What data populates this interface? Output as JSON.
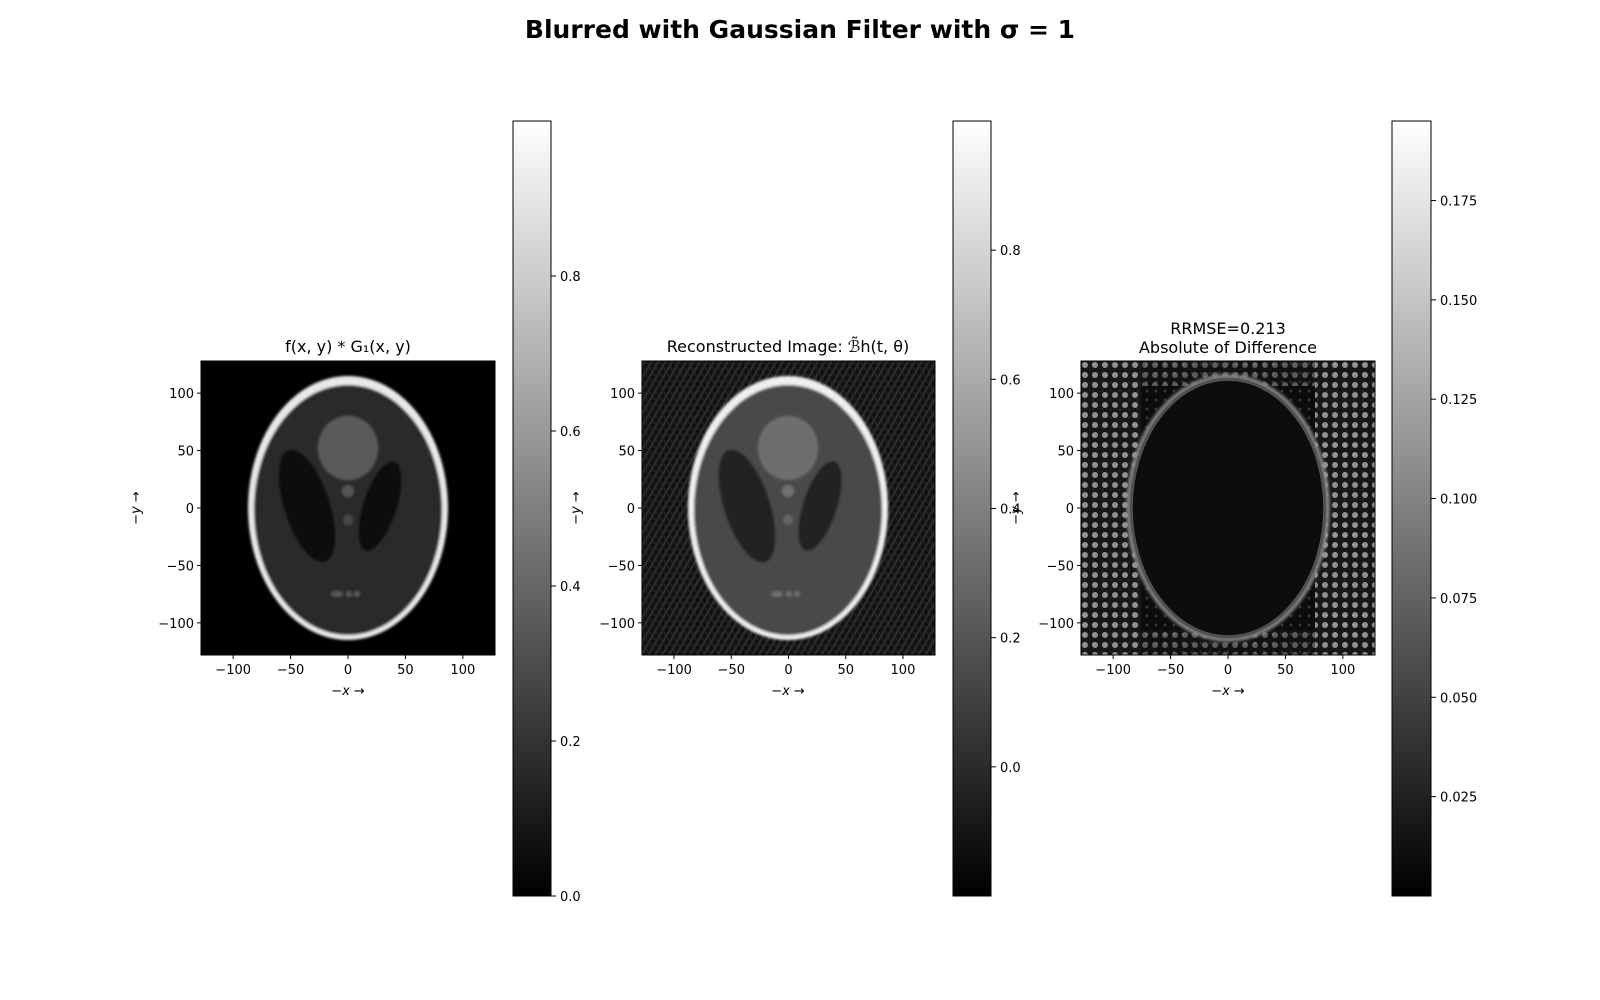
{
  "figure": {
    "suptitle": "Blurred with Gaussian Filter with σ =  1"
  },
  "chart_data": [
    {
      "type": "heatmap",
      "panel": "blurred-phantom",
      "title": "f(x, y) * G₁(x, y)",
      "xlabel": "−x →",
      "ylabel": "−y →",
      "xlim": [
        -128,
        128
      ],
      "ylim": [
        -128,
        128
      ],
      "xticks": [
        -100,
        -50,
        0,
        50,
        100
      ],
      "yticks": [
        100,
        50,
        0,
        -50,
        -100
      ],
      "colormap": "gray",
      "colorbar": {
        "range": [
          0.0,
          1.0
        ],
        "ticks": [
          0.0,
          0.2,
          0.4,
          0.6,
          0.8
        ],
        "tick_labels": [
          "0.0",
          "0.2",
          "0.4",
          "0.6",
          "0.8"
        ]
      }
    },
    {
      "type": "heatmap",
      "panel": "reconstructed",
      "title": "Reconstructed Image: ℬ̃h(t, θ)",
      "xlabel": "−x →",
      "ylabel": "−y →",
      "xlim": [
        -128,
        128
      ],
      "ylim": [
        -128,
        128
      ],
      "xticks": [
        -100,
        -50,
        0,
        50,
        100
      ],
      "yticks": [
        100,
        50,
        0,
        -50,
        -100
      ],
      "colormap": "gray",
      "colorbar": {
        "range": [
          -0.2,
          1.0
        ],
        "ticks": [
          0.0,
          0.2,
          0.4,
          0.6,
          0.8
        ],
        "tick_labels": [
          "0.0",
          "0.2",
          "0.4",
          "0.6",
          "0.8"
        ]
      }
    },
    {
      "type": "heatmap",
      "panel": "abs-difference",
      "title": "RRMSE=0.213",
      "subtitle": "Absolute of Difference",
      "xlabel": "−x →",
      "ylabel": "−y →",
      "xlim": [
        -128,
        128
      ],
      "ylim": [
        -128,
        128
      ],
      "xticks": [
        -100,
        -50,
        0,
        50,
        100
      ],
      "yticks": [
        100,
        50,
        0,
        -50,
        -100
      ],
      "colormap": "gray",
      "colorbar": {
        "range": [
          0.0,
          0.195
        ],
        "ticks": [
          0.025,
          0.05,
          0.075,
          0.1,
          0.125,
          0.15,
          0.175
        ],
        "tick_labels": [
          "0.025",
          "0.050",
          "0.075",
          "0.100",
          "0.125",
          "0.150",
          "0.175"
        ]
      }
    }
  ]
}
